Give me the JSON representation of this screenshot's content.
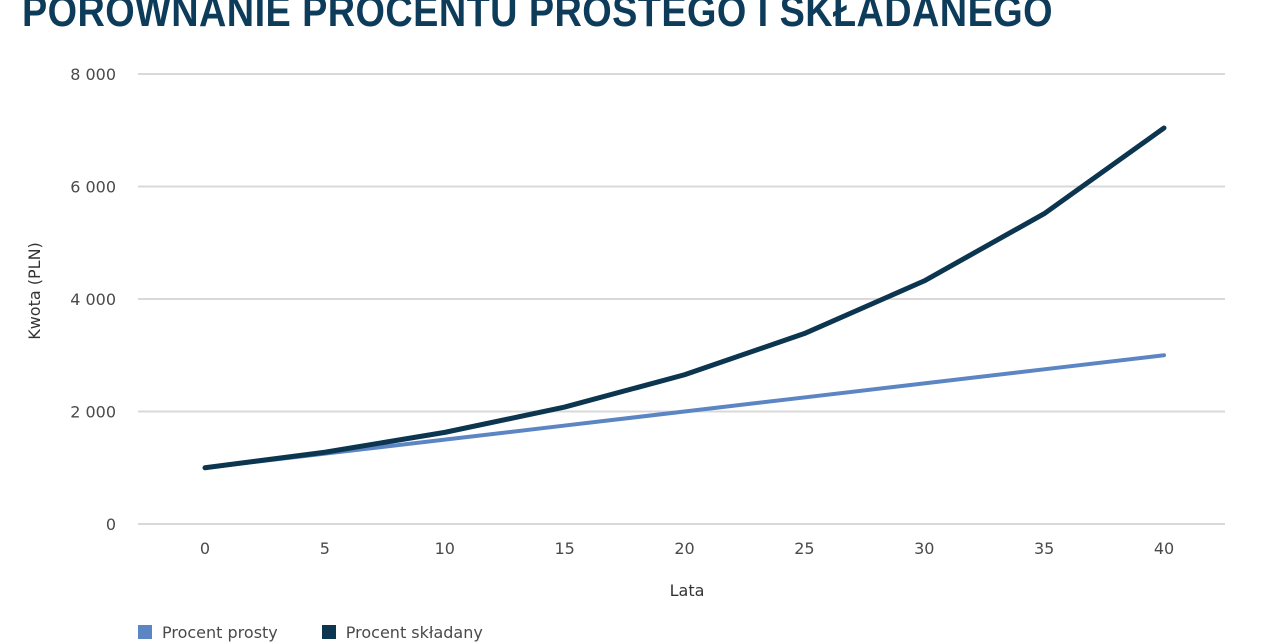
{
  "header": {
    "title": "PORÓWNANIE PROCENTU PROSTEGO I SKŁADANEGO"
  },
  "colors": {
    "simple": "#5b85c3",
    "compound": "#0c3550",
    "grid": "#d9d9d9"
  },
  "chart_data": {
    "type": "line",
    "title": "PORÓWNANIE PROCENTU PROSTEGO I SKŁADANEGO",
    "xlabel": "Lata",
    "ylabel": "Kwota (PLN)",
    "x": [
      0,
      5,
      10,
      15,
      20,
      25,
      30,
      35,
      40
    ],
    "x_tick_labels": [
      "0",
      "5",
      "10",
      "15",
      "20",
      "25",
      "30",
      "35",
      "40"
    ],
    "ylim": [
      0,
      8000
    ],
    "y_ticks": [
      0,
      2000,
      4000,
      6000,
      8000
    ],
    "y_tick_labels": [
      "0",
      "2 000",
      "4 000",
      "6 000",
      "8 000"
    ],
    "grid": true,
    "legend_position": "bottom-left",
    "series": [
      {
        "name": "Procent prosty",
        "color": "#5b85c3",
        "values": [
          1000,
          1250,
          1500,
          1750,
          2000,
          2250,
          2500,
          2750,
          3000
        ]
      },
      {
        "name": "Procent składany",
        "color": "#0c3550",
        "values": [
          1000,
          1276,
          1629,
          2079,
          2653,
          3386,
          4322,
          5516,
          7040
        ]
      }
    ]
  }
}
